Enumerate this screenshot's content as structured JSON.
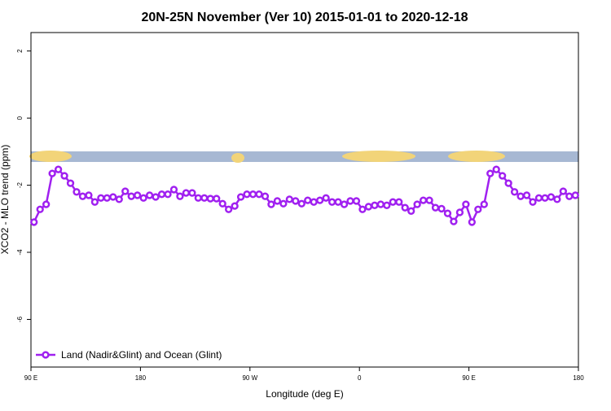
{
  "chart_data": {
    "type": "line",
    "title": "20N-25N November (Ver 10)   2015-01-01 to 2020-12-18",
    "x_label": "Longitude (deg E)",
    "y_label": "XCO2 - MLO trend (ppm)",
    "x": [
      92.5,
      97.5,
      102.5,
      107.5,
      112.5,
      117.5,
      122.5,
      127.5,
      132.5,
      137.5,
      142.5,
      147.5,
      152.5,
      157.5,
      162.5,
      167.5,
      172.5,
      177.5,
      182.5,
      187.5,
      192.5,
      197.5,
      202.5,
      207.5,
      212.5,
      217.5,
      222.5,
      227.5,
      232.5,
      237.5,
      242.5,
      247.5,
      252.5,
      257.5,
      262.5,
      267.5,
      272.5,
      277.5,
      282.5,
      287.5,
      292.5,
      297.5,
      302.5,
      307.5,
      312.5,
      317.5,
      322.5,
      327.5,
      332.5,
      337.5,
      342.5,
      347.5,
      352.5,
      357.5,
      362.5,
      367.5,
      372.5,
      377.5,
      382.5,
      387.5,
      392.5,
      397.5,
      402.5,
      407.5,
      412.5,
      417.5,
      422.5,
      427.5,
      432.5,
      437.5,
      442.5,
      447.5,
      452.5,
      457.5,
      462.5,
      467.5,
      472.5,
      477.5,
      482.5,
      487.5,
      492.5,
      497.5,
      502.5,
      507.5,
      512.5,
      517.5,
      522.5,
      527.5,
      532.5,
      537.5
    ],
    "series": [
      {
        "name": "Land (Nadir&Glint) and Ocean (Glint)",
        "color": "#a020f0",
        "values": [
          -3.1,
          -2.72,
          -2.57,
          -1.65,
          -1.53,
          -1.72,
          -1.94,
          -2.2,
          -2.33,
          -2.3,
          -2.5,
          -2.38,
          -2.38,
          -2.35,
          -2.42,
          -2.18,
          -2.33,
          -2.3,
          -2.38,
          -2.3,
          -2.35,
          -2.27,
          -2.27,
          -2.13,
          -2.33,
          -2.23,
          -2.23,
          -2.38,
          -2.38,
          -2.4,
          -2.4,
          -2.55,
          -2.72,
          -2.62,
          -2.35,
          -2.27,
          -2.27,
          -2.27,
          -2.33,
          -2.57,
          -2.47,
          -2.55,
          -2.42,
          -2.47,
          -2.55,
          -2.45,
          -2.5,
          -2.45,
          -2.38,
          -2.5,
          -2.5,
          -2.57,
          -2.47,
          -2.47,
          -2.72,
          -2.64,
          -2.6,
          -2.57,
          -2.6,
          -2.5,
          -2.5,
          -2.67,
          -2.77,
          -2.57,
          -2.45,
          -2.45,
          -2.67,
          -2.7,
          -2.84,
          -3.08,
          -2.81,
          -2.57,
          -3.1,
          -2.72,
          -2.57,
          -1.65,
          -1.53,
          -1.72,
          -1.94,
          -2.2,
          -2.33,
          -2.3,
          -2.5,
          -2.38,
          -2.38,
          -2.35,
          -2.42,
          -2.18,
          -2.33,
          -2.3
        ]
      }
    ],
    "xlim": [
      90,
      540
    ],
    "xticks": [
      {
        "value": 90,
        "label": "90 E"
      },
      180,
      {
        "value": 270,
        "label": "90 W"
      },
      {
        "value": 360,
        "label": "0"
      },
      {
        "value": 450,
        "label": "90 E"
      },
      {
        "value": 540,
        "label": "180"
      }
    ],
    "ylim": [
      -7.42,
      2.55
    ],
    "yticks": [
      2,
      0,
      -2,
      -4,
      -6
    ],
    "legend": "bottom-left"
  }
}
